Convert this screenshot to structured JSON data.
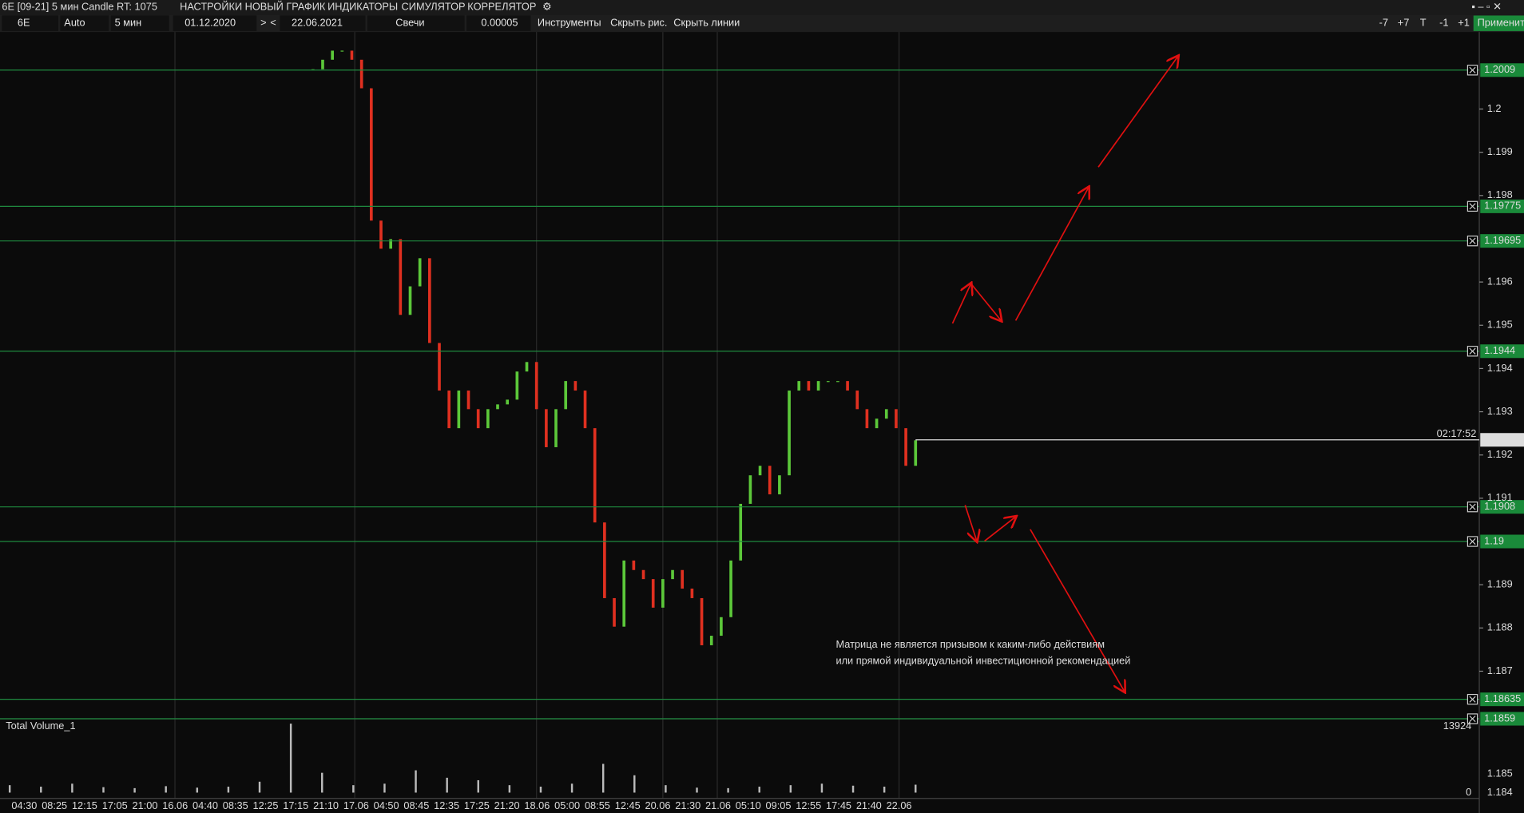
{
  "window": {
    "title": "6E [09-21] 5 мин Candle RT: 1075",
    "menu": [
      {
        "label": "НАСТРОЙКИ",
        "color": "#e8338f"
      },
      {
        "label": "НОВЫЙ ГРАФИК",
        "color": "#f07b20"
      },
      {
        "label": "ИНДИКАТОРЫ",
        "color": "#3cb84a"
      },
      {
        "label": "СИМУЛЯТОР",
        "color": "#d070e0"
      },
      {
        "label": "КОРРЕЛЯТОР",
        "color": "#3a8fe0"
      }
    ]
  },
  "toolbar": {
    "symbol": "6E",
    "scale": "Auto",
    "timeframe": "5 мин",
    "date_from": "01.12.2020",
    "next": ">",
    "prev": "<",
    "date_to": "22.06.2021",
    "chart_type": "Свечи",
    "step": "0.00005",
    "buttons": [
      "Инструменты",
      "Скрыть рис.",
      "Скрыть линии"
    ],
    "right_buttons": [
      "-7",
      "+7",
      "T",
      "-1",
      "+1"
    ],
    "apply": "Применить"
  },
  "chart": {
    "ylim": [
      1.20178,
      1.1859
    ],
    "yticks": [
      1.2,
      1.199,
      1.198,
      1.196,
      1.195,
      1.194,
      1.193,
      1.192,
      1.191,
      1.189,
      1.188,
      1.187
    ],
    "levels": [
      1.2009,
      1.19775,
      1.19695,
      1.1944,
      1.1908,
      1.19,
      1.18635,
      1.1859
    ],
    "current_price": 1.19235,
    "timer": "02:17:52",
    "prices": [
      1.20092,
      1.20114,
      1.20135,
      1.20135,
      1.20114,
      1.20048,
      1.19742,
      1.19677,
      1.19699,
      1.19524,
      1.1959,
      1.19655,
      1.19459,
      1.19349,
      1.19262,
      1.19349,
      1.19306,
      1.19262,
      1.19306,
      1.19317,
      1.19328,
      1.19393,
      1.19415,
      1.19306,
      1.19218,
      1.19306,
      1.19371,
      1.19349,
      1.19262,
      1.19044,
      1.18869,
      1.18803,
      1.18956,
      1.18934,
      1.18913,
      1.18847,
      1.18913,
      1.18934,
      1.18891,
      1.18869,
      1.1876,
      1.18782,
      1.18825,
      1.18956,
      1.19087,
      1.19153,
      1.19175,
      1.19109,
      1.19153,
      1.19349,
      1.19371,
      1.19349,
      1.19371,
      1.19371,
      1.19371,
      1.19349,
      1.19306,
      1.19262,
      1.19284,
      1.19306,
      1.19262,
      1.19175,
      1.19234
    ],
    "annotation": [
      "Матрица не является призывом к каким-либо действиям",
      "или прямой индивидуальной инвестиционной рекомендацией"
    ]
  },
  "volume": {
    "title": "Total Volume_1",
    "max_label": "13924",
    "zero_label": "0",
    "ylim": [
      0,
      13924
    ],
    "extra_labels": [
      "1.185",
      "1.184"
    ],
    "values": [
      1500,
      1200,
      1800,
      1100,
      900,
      1300,
      1000,
      1200,
      2200,
      13924,
      4000,
      1500,
      1800,
      4500,
      3000,
      2500,
      1500,
      1200,
      1800,
      5800,
      3500,
      1500,
      1000,
      900,
      1200,
      1500,
      1800,
      1400,
      1200,
      1600
    ]
  },
  "time_axis": [
    "04:30",
    "08:25",
    "12:15",
    "17:05",
    "21:00",
    "16.06",
    "04:40",
    "08:35",
    "12:25",
    "17:15",
    "21:10",
    "17.06",
    "04:50",
    "08:45",
    "12:35",
    "17:25",
    "21:20",
    "18.06",
    "05:00",
    "08:55",
    "12:45",
    "20.06",
    "21:30",
    "21.06",
    "05:10",
    "09:05",
    "12:55",
    "17:45",
    "21:40",
    "22.06"
  ]
}
